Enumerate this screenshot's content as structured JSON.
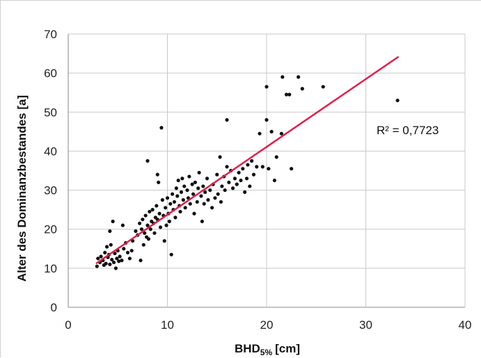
{
  "chart_data": {
    "type": "scatter",
    "xlabel": "BHD5% [cm]",
    "xlabel_main": "BHD",
    "xlabel_sub": "5%",
    "xlabel_unit": "[cm]",
    "ylabel": "Alter des Dominanzbestandes [a]",
    "xlim": [
      0,
      40
    ],
    "ylim": [
      0,
      70
    ],
    "xticks": [
      0,
      10,
      20,
      30,
      40
    ],
    "yticks": [
      0,
      10,
      20,
      30,
      40,
      50,
      60,
      70
    ],
    "grid": true,
    "annotation": "R² = 0,7723",
    "colors": {
      "points": "#111111",
      "trendline": "#e0204a",
      "grid": "#c8c8c8"
    },
    "trendline": {
      "x": [
        2.8,
        33.3
      ],
      "y": [
        11.2,
        64.2
      ]
    },
    "points": [
      [
        2.9,
        10.5
      ],
      [
        3.0,
        12.5
      ],
      [
        3.2,
        11.5
      ],
      [
        3.3,
        13.0
      ],
      [
        3.5,
        12.0
      ],
      [
        3.6,
        10.8
      ],
      [
        3.7,
        14.0
      ],
      [
        3.8,
        11.2
      ],
      [
        3.9,
        15.5
      ],
      [
        4.0,
        12.8
      ],
      [
        4.1,
        13.5
      ],
      [
        4.2,
        11.0
      ],
      [
        4.2,
        19.5
      ],
      [
        4.3,
        16.0
      ],
      [
        4.4,
        12.2
      ],
      [
        4.5,
        22.0
      ],
      [
        4.6,
        11.5
      ],
      [
        4.7,
        13.8
      ],
      [
        4.8,
        10.0
      ],
      [
        4.9,
        12.5
      ],
      [
        5.0,
        14.5
      ],
      [
        5.1,
        11.8
      ],
      [
        5.2,
        13.0
      ],
      [
        5.4,
        12.0
      ],
      [
        5.5,
        21.0
      ],
      [
        5.6,
        15.0
      ],
      [
        5.8,
        16.5
      ],
      [
        6.0,
        14.0
      ],
      [
        6.2,
        12.5
      ],
      [
        6.4,
        14.5
      ],
      [
        6.5,
        17.0
      ],
      [
        6.8,
        19.5
      ],
      [
        7.0,
        18.5
      ],
      [
        7.2,
        21.5
      ],
      [
        7.3,
        12.0
      ],
      [
        7.4,
        20.0
      ],
      [
        7.5,
        22.5
      ],
      [
        7.6,
        16.0
      ],
      [
        7.7,
        19.0
      ],
      [
        7.8,
        23.5
      ],
      [
        7.9,
        18.0
      ],
      [
        8.0,
        21.0
      ],
      [
        8.0,
        37.5
      ],
      [
        8.1,
        17.5
      ],
      [
        8.2,
        24.5
      ],
      [
        8.3,
        20.0
      ],
      [
        8.4,
        22.0
      ],
      [
        8.5,
        25.0
      ],
      [
        8.6,
        21.5
      ],
      [
        8.7,
        19.0
      ],
      [
        8.8,
        23.0
      ],
      [
        8.9,
        26.0
      ],
      [
        9.0,
        22.5
      ],
      [
        9.0,
        34.0
      ],
      [
        9.1,
        32.0
      ],
      [
        9.2,
        24.0
      ],
      [
        9.3,
        20.5
      ],
      [
        9.4,
        46.0
      ],
      [
        9.5,
        27.5
      ],
      [
        9.6,
        23.5
      ],
      [
        9.7,
        17.0
      ],
      [
        9.8,
        25.5
      ],
      [
        9.9,
        21.0
      ],
      [
        10.0,
        28.0
      ],
      [
        10.1,
        24.0
      ],
      [
        10.2,
        22.0
      ],
      [
        10.3,
        26.5
      ],
      [
        10.4,
        13.5
      ],
      [
        10.5,
        29.0
      ],
      [
        10.6,
        25.0
      ],
      [
        10.7,
        27.0
      ],
      [
        10.8,
        23.0
      ],
      [
        10.9,
        30.5
      ],
      [
        11.0,
        28.5
      ],
      [
        11.1,
        32.5
      ],
      [
        11.2,
        26.0
      ],
      [
        11.3,
        24.5
      ],
      [
        11.4,
        29.5
      ],
      [
        11.5,
        33.0
      ],
      [
        11.6,
        27.5
      ],
      [
        11.7,
        31.0
      ],
      [
        11.8,
        25.5
      ],
      [
        12.0,
        30.0
      ],
      [
        12.1,
        28.0
      ],
      [
        12.2,
        33.5
      ],
      [
        12.3,
        26.5
      ],
      [
        12.5,
        31.5
      ],
      [
        12.6,
        29.0
      ],
      [
        12.7,
        24.0
      ],
      [
        12.8,
        32.0
      ],
      [
        13.0,
        27.0
      ],
      [
        13.1,
        30.5
      ],
      [
        13.2,
        34.5
      ],
      [
        13.4,
        28.5
      ],
      [
        13.5,
        22.0
      ],
      [
        13.6,
        31.0
      ],
      [
        13.7,
        26.5
      ],
      [
        13.8,
        29.5
      ],
      [
        14.0,
        33.0
      ],
      [
        14.1,
        27.5
      ],
      [
        14.3,
        30.0
      ],
      [
        14.5,
        25.5
      ],
      [
        14.6,
        31.5
      ],
      [
        14.8,
        28.0
      ],
      [
        15.0,
        34.0
      ],
      [
        15.1,
        29.0
      ],
      [
        15.3,
        38.5
      ],
      [
        15.4,
        27.0
      ],
      [
        15.5,
        31.0
      ],
      [
        15.7,
        33.5
      ],
      [
        15.8,
        30.0
      ],
      [
        16.0,
        36.0
      ],
      [
        16.0,
        48.0
      ],
      [
        16.2,
        32.0
      ],
      [
        16.4,
        35.0
      ],
      [
        16.6,
        30.5
      ],
      [
        16.8,
        33.0
      ],
      [
        17.0,
        31.5
      ],
      [
        17.2,
        34.5
      ],
      [
        17.4,
        32.5
      ],
      [
        17.6,
        35.5
      ],
      [
        17.8,
        29.5
      ],
      [
        18.0,
        33.0
      ],
      [
        18.1,
        36.5
      ],
      [
        18.3,
        31.0
      ],
      [
        18.5,
        37.5
      ],
      [
        18.7,
        34.0
      ],
      [
        19.0,
        36.0
      ],
      [
        19.3,
        44.5
      ],
      [
        19.6,
        36.0
      ],
      [
        20.0,
        48.0
      ],
      [
        20.0,
        56.5
      ],
      [
        20.2,
        35.5
      ],
      [
        20.5,
        45.0
      ],
      [
        20.8,
        32.5
      ],
      [
        21.0,
        38.5
      ],
      [
        21.5,
        44.5
      ],
      [
        21.6,
        59.0
      ],
      [
        22.0,
        54.5
      ],
      [
        22.3,
        54.5
      ],
      [
        22.5,
        35.5
      ],
      [
        23.2,
        59.0
      ],
      [
        23.6,
        56.0
      ],
      [
        25.7,
        56.5
      ],
      [
        33.2,
        53.0
      ]
    ]
  }
}
